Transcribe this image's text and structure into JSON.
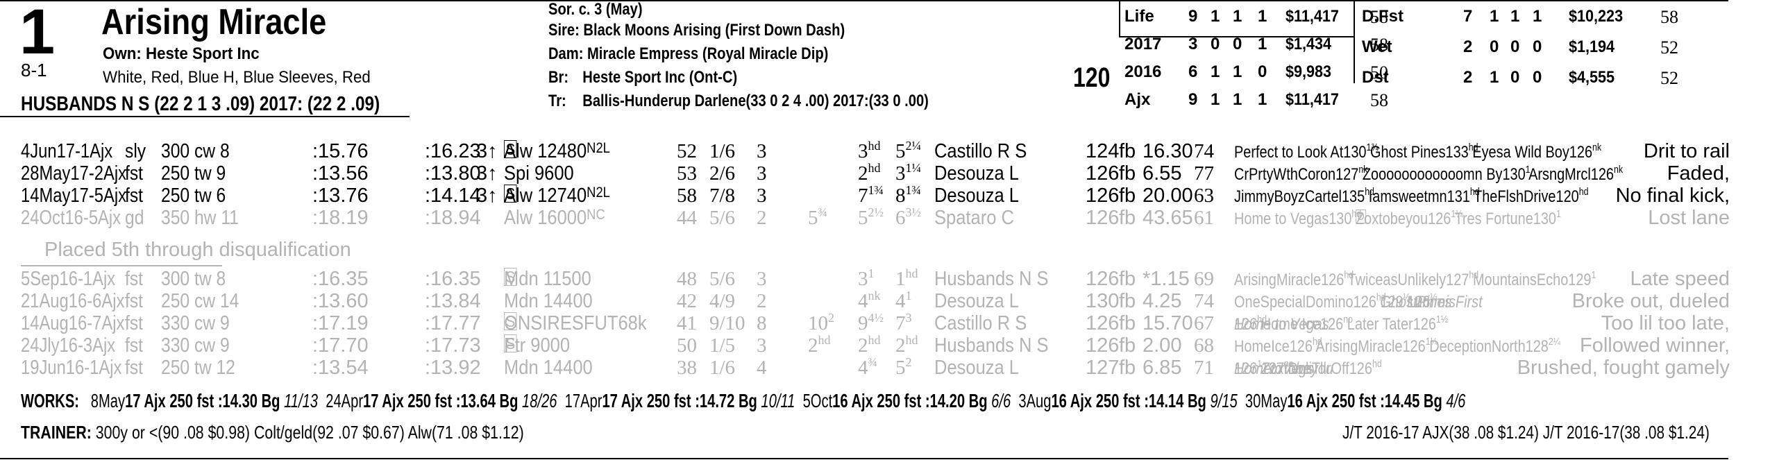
{
  "horse": {
    "number": "1",
    "odds": "8-1",
    "name": "Arising Miracle",
    "owner": "Own: Heste Sport Inc",
    "silks": "White, Red, Blue H, Blue Sleeves, Red",
    "trainer_line": "HUSBANDS N S (22 2 1 3 .09) 2017: (22 2 .09)",
    "weight": "120"
  },
  "pedigree": {
    "sex_age": "Sor. c. 3 (May)",
    "sire_label": "Sire:",
    "sire": "Black Moons Arising (First Down Dash)",
    "dam_label": "Dam:",
    "dam": "Miracle Empress (Royal Miracle Dip)",
    "breeder_label": "Br:",
    "breeder": "Heste Sport Inc (Ont-C)",
    "trainer_label": "Tr:",
    "trainer": "Ballis-Hunderup Darlene(33 0 2 4 .00) 2017:(33 0 .00)"
  },
  "stats_left": [
    {
      "label": "Life",
      "s": "9",
      "w": "1",
      "p": "1",
      "sh": "1",
      "earn": "$11,417",
      "spd": "58"
    },
    {
      "label": "2017",
      "s": "3",
      "w": "0",
      "p": "0",
      "sh": "1",
      "earn": "$1,434",
      "spd": "58"
    },
    {
      "label": "2016",
      "s": "6",
      "w": "1",
      "p": "1",
      "sh": "0",
      "earn": "$9,983",
      "spd": "50"
    },
    {
      "label": "Ajx",
      "s": "9",
      "w": "1",
      "p": "1",
      "sh": "1",
      "earn": "$11,417",
      "spd": "58"
    }
  ],
  "stats_right": [
    {
      "label": "D.Fst",
      "s": "7",
      "w": "1",
      "p": "1",
      "sh": "1",
      "earn": "$10,223",
      "spd": "58"
    },
    {
      "label": "Wet",
      "s": "2",
      "w": "0",
      "p": "0",
      "sh": "0",
      "earn": "$1,194",
      "spd": "52"
    },
    {
      "label": "Dst",
      "s": "2",
      "w": "1",
      "p": "0",
      "sh": "0",
      "earn": "$4,555",
      "spd": "52"
    }
  ],
  "races": [
    {
      "date": "4Jun17-1Ajx",
      "cond": "sly",
      "dist": "300 cw 8",
      "f1": ":15.76",
      "f2": ":16.23",
      "age": "3↑",
      "box": "S",
      "cls": "Alw 12480",
      "clsub": "N2L",
      "spd": "52",
      "pp": "1/6",
      "st": "3",
      "c1": "",
      "c2": "3",
      "c2s": "hd",
      "fin": "5",
      "fin_f": "2¼",
      "jockey": "Castillo R S",
      "wt": "124",
      "meq": "fb",
      "odds": "16.30",
      "sp2": "74",
      "cmt_html": "Perfect to Look At130<span class='frac'>1¾</span> Ghost Pines133<span class='frac'>hd</span> Eyesa Wild Boy126<span class='frac'>nk</span>",
      "remark": "Drit to rail",
      "grey": false
    },
    {
      "date": "28May17-2Ajx",
      "cond": "fst",
      "dist": "250 tw 9",
      "f1": ":13.56",
      "f2": ":13.80",
      "age": "3↑",
      "box": "",
      "cls": "Spi 9600",
      "clsub": "",
      "spd": "53",
      "pp": "2/6",
      "st": "3",
      "c1": "",
      "c2": "2",
      "c2s": "hd",
      "fin": "3",
      "fin_f": "1¼",
      "jockey": "Desouza L",
      "wt": "126",
      "meq": "fb",
      "odds": "6.55",
      "sp2": "77",
      "cmt_html": "CrPrtyWthCoron127<span class='frac'>nk</span> Zoooooooooooomn By130<span class='frac'>1</span> ArsngMrcl126<span class='frac'>nk</span>",
      "remark": "Faded,",
      "grey": false
    },
    {
      "date": "14May17-5Ajx",
      "cond": "fst",
      "dist": "250 tw 6",
      "f1": ":13.76",
      "f2": ":14.14",
      "age": "3↑",
      "box": "S",
      "cls": "Alw 12740",
      "clsub": "N2L",
      "spd": "58",
      "pp": "7/8",
      "st": "3",
      "c1": "",
      "c2": "7",
      "c2s": "1¾",
      "fin": "8",
      "fin_f": "1¾",
      "jockey": "Desouza L",
      "wt": "126",
      "meq": "fb",
      "odds": "20.00",
      "sp2": "63",
      "cmt_html": "JimmyBoyzCartel135<span class='frac'>hd</span> Iamsweetmn131<span class='frac'>hd</span> TheFlshDrive120<span class='frac'>hd</span>",
      "remark": "No final kick,",
      "grey": false
    },
    {
      "date": "24Oct16-5Ajx",
      "cond": "gd",
      "dist": "350 hw 11",
      "f1": ":18.19",
      "f2": ":18.94",
      "age": "",
      "box": "",
      "cls": "Alw 16000",
      "clsub": "NC",
      "spd": "44",
      "pp": "5/6",
      "st": "2",
      "c1": "5",
      "c1s": "¾",
      "c2": "5",
      "c2s": "2½",
      "fin": "6",
      "fin_f": "3½",
      "jockey": "Spataro C",
      "wt": "126",
      "meq": "fb",
      "odds": "43.65",
      "sp2": "61",
      "cmt_html": "Home to Vegas130<span class='frac'>hd</span> <span class='boxD'>D</span>Zoxtobeyou126<span class='frac'>1¼</span> Tres Fortune130<span class='frac'>1</span>",
      "remark": "Lost lane",
      "grey": true
    },
    {
      "date": "5Sep16-1Ajx",
      "cond": "fst",
      "dist": "300 tw 8",
      "f1": ":16.35",
      "f2": ":16.35",
      "age": "",
      "box": "S",
      "cls": "Mdn 11500",
      "clsub": "",
      "spd": "48",
      "pp": "5/6",
      "st": "3",
      "c1": "",
      "c2": "3",
      "c2s": "1",
      "fin": "1",
      "fin_f": "hd",
      "jockey": "Husbands N S",
      "wt": "126",
      "meq": "fb",
      "odds": "*1.15",
      "sp2": "69",
      "cmt_html": "ArisingMiracle126<span class='frac'>hd</span> TwiceasUnlikely127<span class='frac'>hd</span> MountainsEcho129<span class='frac'>1</span>",
      "remark": "Late speed",
      "grey": true
    },
    {
      "date": "21Aug16-6Ajx",
      "cond": "fst",
      "dist": "250 cw 14",
      "f1": ":13.60",
      "f2": ":13.84",
      "age": "",
      "box": "",
      "cls": "Mdn 14400",
      "clsub": "",
      "spd": "42",
      "pp": "4/9",
      "st": "2",
      "c1": "",
      "c2": "4",
      "c2s": "nk",
      "fin": "4",
      "fin_f": "1",
      "jockey": "Desouza L",
      "wt": "130",
      "meq": "fb",
      "odds": "4.25",
      "sp2": "74",
      "cmt_html": "OneSpecialDomino126<span class='frac'>hd</span> <span class='it'>GhostPines</span>129<span class='frac'>½</span> <span class='it'>LummisFirst</span>126<span class='frac'>½</span>",
      "remark": "Broke out, dueled",
      "grey": true
    },
    {
      "date": "14Aug16-7Ajx",
      "cond": "fst",
      "dist": "330 cw 9",
      "f1": ":17.19",
      "f2": ":17.77",
      "age": "",
      "box": "S",
      "cls": "ONSIRESFUT68k",
      "clsub": "",
      "spd": "41",
      "pp": "9/10",
      "st": "8",
      "c1": "10",
      "c1s": "2",
      "c2": "9",
      "c2s": "4½",
      "fin": "7",
      "fin_f": "3",
      "jockey": "Castillo R S",
      "wt": "126",
      "meq": "fb",
      "odds": "15.70",
      "sp2": "67",
      "cmt_html": "<span class='it'>Home to Vegas</span>126<span class='frac'>hd</span> Home Ice126<span class='frac'>no</span> Later Tater126<span class='frac'>1½</span>",
      "remark": "Too lil too late,",
      "grey": true
    },
    {
      "date": "24Jly16-3Ajx",
      "cond": "fst",
      "dist": "330 cw 9",
      "f1": ":17.70",
      "f2": ":17.73",
      "age": "",
      "box": "S",
      "cls": "Ftr 9000",
      "clsub": "",
      "spd": "50",
      "pp": "1/5",
      "st": "3",
      "c1": "2",
      "c1s": "hd",
      "c2": "2",
      "c2s": "hd",
      "fin": "2",
      "fin_f": "hd",
      "jockey": "Husbands N S",
      "wt": "126",
      "meq": "fb",
      "odds": "2.00",
      "sp2": "68",
      "cmt_html": "HomeIce126<span class='frac'>hd</span> ArisingMiracle126<span class='frac'>1¼</span> DeceptionNorth128<span class='frac'>2¼</span>",
      "remark": "Followed winner,",
      "grey": true
    },
    {
      "date": "19Jun16-1Ajx",
      "cond": "fst",
      "dist": "250 tw 12",
      "f1": ":13.54",
      "f2": ":13.92",
      "age": "",
      "box": "",
      "cls": "Mdn 14400",
      "clsub": "",
      "spd": "38",
      "pp": "1/6",
      "st": "4",
      "c1": "",
      "c2": "4",
      "c2s": "¾",
      "fin": "5",
      "fin_f": "2",
      "jockey": "Desouza L",
      "wt": "127",
      "meq": "fb",
      "odds": "6.85",
      "sp2": "71",
      "cmt_html": "<span class='it'>HometoVegs</span>126<span class='frac'>1</span> <span class='it'>Zoxtobeyou</span>127<span class='frac'>no</span> DnliTllrOff126<span class='frac'>hd</span>",
      "remark": "Brushed, fought gamely",
      "grey": true
    }
  ],
  "dq_note": "Placed 5th through disqualification",
  "works": {
    "label": "WORKS:",
    "items_html": "8May<b>17 Ajx 250 fst :14.30 Bg</b> <i>11/13</i> &nbsp;24Apr<b>17 Ajx 250 fst :13.64 Bg</b> <i>18/26</i> &nbsp;17Apr<b>17 Ajx 250 fst :14.72 Bg</b> <i>10/11</i> &nbsp;5Oct<b>16 Ajx 250 fst :14.20 Bg</b> <i>6/6</i> &nbsp;3Aug<b>16 Ajx 250 fst :14.14 Bg</b> <i>9/15</i> &nbsp;30May<b>16 Ajx 250 fst :14.45 Bg</b> <i>4/6</i>"
  },
  "trainer_stats": {
    "label": "TRAINER:",
    "text": "300y or <(90 .08 $0.98) Colt/geld(92 .07 $0.67) Alw(71 .08 $1.12)",
    "jt": "J/T 2016-17 AJX(38 .08 $1.24) J/T 2016-17(38 .08 $1.24)"
  },
  "colors": {
    "grey_text": "#b3b3b3",
    "text": "#000000"
  }
}
